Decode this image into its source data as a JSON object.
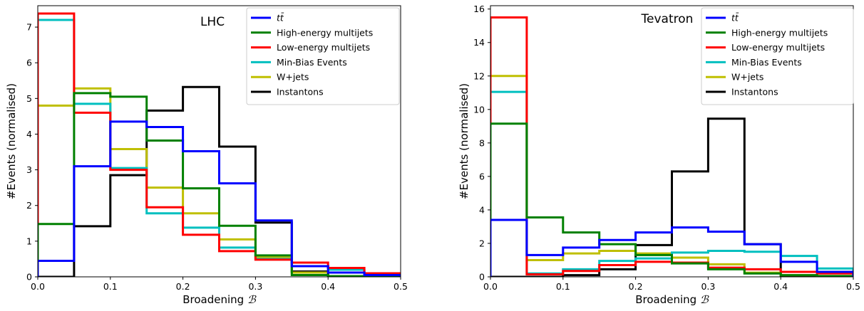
{
  "chart_data": [
    {
      "type": "histogram",
      "title": "LHC",
      "xlabel": "Broadening ",
      "xlabel_symbol": "ℬ",
      "ylabel": "#Events (normalised)",
      "xlim": [
        0,
        0.5
      ],
      "ylim": [
        0,
        7.6
      ],
      "xticks": [
        "0.0",
        "0.1",
        "0.2",
        "0.3",
        "0.4",
        "0.5"
      ],
      "yticks": [
        "0",
        "1",
        "2",
        "3",
        "4",
        "5",
        "6",
        "7"
      ],
      "bin_edges": [
        0,
        0.05,
        0.1,
        0.15,
        0.2,
        0.25,
        0.3,
        0.35,
        0.4,
        0.45,
        0.5
      ],
      "legend_position": "top-right",
      "series": [
        {
          "name": "Instantons",
          "color": "#000000",
          "values": [
            0.0,
            1.42,
            2.85,
            4.66,
            5.32,
            3.65,
            1.52,
            0.15,
            0.0,
            0.0
          ]
        },
        {
          "name": "W+jets",
          "color": "#bfbf00",
          "values": [
            4.8,
            5.28,
            3.58,
            2.5,
            1.78,
            1.05,
            0.55,
            0.12,
            0.12,
            0.05
          ]
        },
        {
          "name": "Min-Bias Events",
          "color": "#00bfbf",
          "values": [
            7.2,
            4.85,
            3.05,
            1.78,
            1.38,
            0.82,
            0.5,
            0.3,
            0.2,
            0.05
          ]
        },
        {
          "name": "Low-energy multijets",
          "color": "#ff0000",
          "values": [
            7.38,
            4.6,
            3.0,
            1.95,
            1.18,
            0.72,
            0.48,
            0.4,
            0.25,
            0.1
          ]
        },
        {
          "name": "High-energy multijets",
          "color": "#008000",
          "values": [
            1.48,
            5.15,
            5.05,
            3.82,
            2.48,
            1.43,
            0.6,
            0.05,
            0.02,
            0.0
          ]
        },
        {
          "name": "tt̄",
          "color": "#0000ff",
          "values": [
            0.45,
            3.1,
            4.35,
            4.2,
            3.52,
            2.62,
            1.58,
            0.3,
            0.12,
            0.05
          ]
        }
      ]
    },
    {
      "type": "histogram",
      "title": "Tevatron",
      "xlabel": "Broadening ",
      "xlabel_symbol": "ℬ",
      "ylabel": "#Events (normalised)",
      "xlim": [
        0,
        0.5
      ],
      "ylim": [
        0,
        16.2
      ],
      "xticks": [
        "0.0",
        "0.1",
        "0.2",
        "0.3",
        "0.4",
        "0.5"
      ],
      "yticks": [
        "0",
        "2",
        "4",
        "6",
        "8",
        "10",
        "12",
        "14",
        "16"
      ],
      "bin_edges": [
        0,
        0.05,
        0.1,
        0.15,
        0.2,
        0.25,
        0.3,
        0.35,
        0.4,
        0.45,
        0.5
      ],
      "legend_position": "top-right",
      "series": [
        {
          "name": "Instantons",
          "color": "#000000",
          "values": [
            0.0,
            0.0,
            0.1,
            0.45,
            1.9,
            6.3,
            9.45,
            1.95,
            0.0,
            0.0
          ]
        },
        {
          "name": "W+jets",
          "color": "#bfbf00",
          "values": [
            12.0,
            1.0,
            1.4,
            1.55,
            1.4,
            1.15,
            0.75,
            0.25,
            0.1,
            0.05
          ]
        },
        {
          "name": "Min-Bias Events",
          "color": "#00bfbf",
          "values": [
            11.05,
            0.2,
            0.45,
            0.95,
            1.1,
            1.45,
            1.55,
            1.5,
            1.25,
            0.5
          ]
        },
        {
          "name": "Low-energy multijets",
          "color": "#ff0000",
          "values": [
            15.5,
            0.15,
            0.35,
            0.7,
            0.9,
            0.85,
            0.55,
            0.45,
            0.3,
            0.2
          ]
        },
        {
          "name": "High-energy multijets",
          "color": "#008000",
          "values": [
            9.15,
            3.55,
            2.65,
            1.95,
            1.3,
            0.8,
            0.45,
            0.2,
            0.1,
            0.05
          ]
        },
        {
          "name": "tt̄",
          "color": "#0000ff",
          "values": [
            3.4,
            1.3,
            1.75,
            2.2,
            2.65,
            2.95,
            2.7,
            1.95,
            0.9,
            0.3
          ]
        }
      ]
    }
  ]
}
